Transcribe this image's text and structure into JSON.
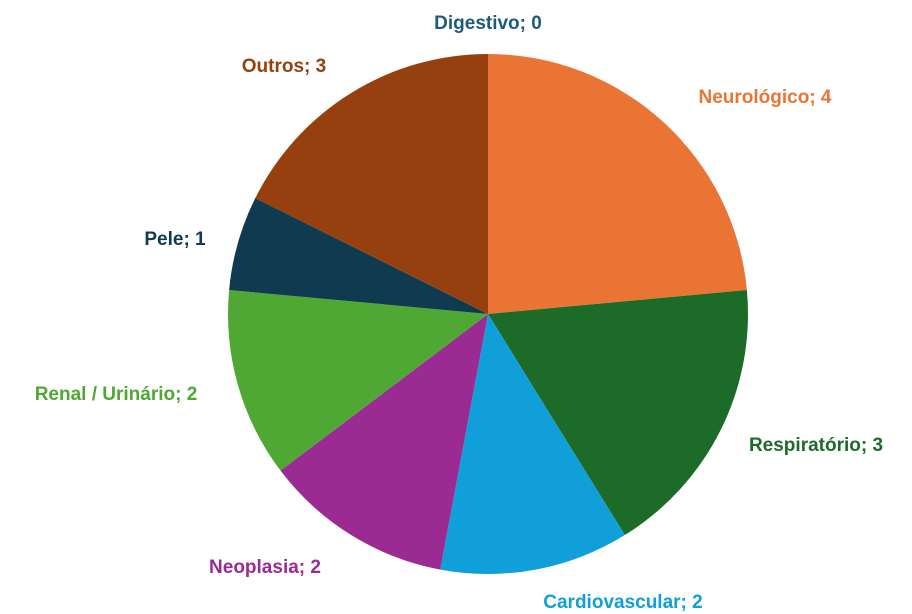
{
  "chart_data": {
    "type": "pie",
    "values": [
      0,
      4,
      3,
      2,
      2,
      2,
      1,
      3
    ],
    "value_labels": [
      "Digestivo; 0",
      "Neurológico; 4",
      "Respiratório; 3",
      "Cardiovascular; 2",
      "Neoplasia; 2",
      "Renal / Urinário; 2",
      "Pele; 1",
      "Outros; 3"
    ],
    "colors": [
      "#1d5a7d",
      "#e97434",
      "#1c6b28",
      "#109fd8",
      "#9b2b93",
      "#4fa833",
      "#103a50",
      "#97400f"
    ]
  }
}
